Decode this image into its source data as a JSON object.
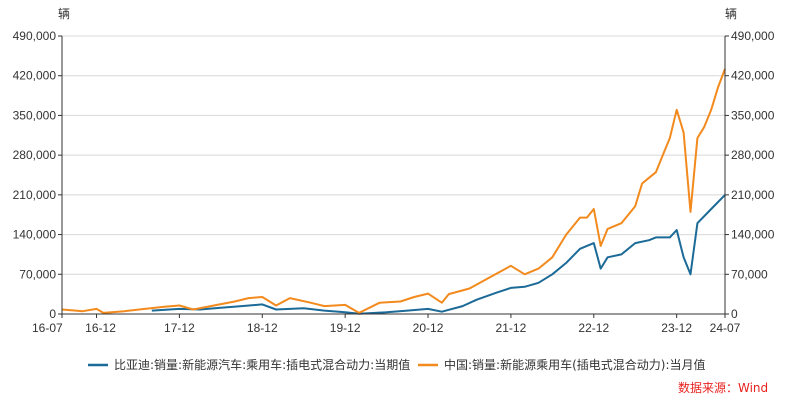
{
  "chart_data": {
    "type": "line",
    "y_unit_left": "辆",
    "y_unit_right": "辆",
    "ylim": [
      0,
      490000
    ],
    "y_ticks": [
      0,
      70000,
      140000,
      210000,
      280000,
      350000,
      420000,
      490000
    ],
    "y_tick_labels": [
      "0",
      "70,000",
      "140,000",
      "210,000",
      "280,000",
      "350,000",
      "420,000",
      "490,000"
    ],
    "x_range": [
      "2016-07",
      "2024-07"
    ],
    "x_ticks": [
      {
        "date": "2016-07",
        "label": "16-07"
      },
      {
        "date": "2016-12",
        "label": "16-12"
      },
      {
        "date": "2017-12",
        "label": "17-12"
      },
      {
        "date": "2018-12",
        "label": "18-12"
      },
      {
        "date": "2019-12",
        "label": "19-12"
      },
      {
        "date": "2020-12",
        "label": "20-12"
      },
      {
        "date": "2021-12",
        "label": "21-12"
      },
      {
        "date": "2022-12",
        "label": "22-12"
      },
      {
        "date": "2023-12",
        "label": "23-12"
      },
      {
        "date": "2024-07",
        "label": "24-07"
      }
    ],
    "grid": "horizontal",
    "legend_position": "bottom",
    "series": [
      {
        "name": "比亚迪:销量:新能源汽车:乘用车:插电式混合动力:当期值",
        "color": "#1b6a97",
        "points": [
          [
            "2017-08",
            6000
          ],
          [
            "2017-12",
            9000
          ],
          [
            "2018-03",
            8000
          ],
          [
            "2018-06",
            11000
          ],
          [
            "2018-09",
            14000
          ],
          [
            "2018-12",
            17000
          ],
          [
            "2019-02",
            8000
          ],
          [
            "2019-06",
            10000
          ],
          [
            "2019-09",
            6000
          ],
          [
            "2019-12",
            3000
          ],
          [
            "2020-02",
            500
          ],
          [
            "2020-06",
            3000
          ],
          [
            "2020-09",
            6000
          ],
          [
            "2020-12",
            9000
          ],
          [
            "2021-02",
            4000
          ],
          [
            "2021-05",
            14000
          ],
          [
            "2021-07",
            25000
          ],
          [
            "2021-10",
            38000
          ],
          [
            "2021-12",
            46000
          ],
          [
            "2022-02",
            48000
          ],
          [
            "2022-04",
            55000
          ],
          [
            "2022-06",
            70000
          ],
          [
            "2022-08",
            90000
          ],
          [
            "2022-10",
            115000
          ],
          [
            "2022-12",
            125000
          ],
          [
            "2023-01",
            80000
          ],
          [
            "2023-02",
            100000
          ],
          [
            "2023-04",
            105000
          ],
          [
            "2023-06",
            125000
          ],
          [
            "2023-08",
            130000
          ],
          [
            "2023-09",
            135000
          ],
          [
            "2023-11",
            135000
          ],
          [
            "2023-12",
            148000
          ],
          [
            "2024-01",
            100000
          ],
          [
            "2024-02",
            70000
          ],
          [
            "2024-03",
            160000
          ],
          [
            "2024-05",
            185000
          ],
          [
            "2024-07",
            210000
          ]
        ]
      },
      {
        "name": "中国:销量:新能源乘用车(插电式混合动力):当月值",
        "color": "#f28a1d",
        "points": [
          [
            "2016-07",
            8000
          ],
          [
            "2016-09",
            6000
          ],
          [
            "2016-10",
            5000
          ],
          [
            "2016-12",
            9000
          ],
          [
            "2017-01",
            2000
          ],
          [
            "2017-04",
            5000
          ],
          [
            "2017-07",
            9000
          ],
          [
            "2017-10",
            13000
          ],
          [
            "2017-12",
            15000
          ],
          [
            "2018-02",
            8000
          ],
          [
            "2018-05",
            15000
          ],
          [
            "2018-08",
            22000
          ],
          [
            "2018-10",
            28000
          ],
          [
            "2018-12",
            30000
          ],
          [
            "2019-02",
            15000
          ],
          [
            "2019-04",
            28000
          ],
          [
            "2019-07",
            20000
          ],
          [
            "2019-09",
            14000
          ],
          [
            "2019-12",
            16000
          ],
          [
            "2020-02",
            2000
          ],
          [
            "2020-05",
            20000
          ],
          [
            "2020-08",
            22000
          ],
          [
            "2020-10",
            30000
          ],
          [
            "2020-12",
            36000
          ],
          [
            "2021-02",
            20000
          ],
          [
            "2021-03",
            35000
          ],
          [
            "2021-06",
            45000
          ],
          [
            "2021-09",
            65000
          ],
          [
            "2021-12",
            85000
          ],
          [
            "2022-02",
            70000
          ],
          [
            "2022-04",
            80000
          ],
          [
            "2022-06",
            100000
          ],
          [
            "2022-08",
            140000
          ],
          [
            "2022-10",
            170000
          ],
          [
            "2022-11",
            170000
          ],
          [
            "2022-12",
            185000
          ],
          [
            "2023-01",
            120000
          ],
          [
            "2023-02",
            150000
          ],
          [
            "2023-04",
            160000
          ],
          [
            "2023-06",
            190000
          ],
          [
            "2023-07",
            230000
          ],
          [
            "2023-08",
            240000
          ],
          [
            "2023-09",
            250000
          ],
          [
            "2023-10",
            280000
          ],
          [
            "2023-11",
            310000
          ],
          [
            "2023-12",
            360000
          ],
          [
            "2024-01",
            320000
          ],
          [
            "2024-02",
            180000
          ],
          [
            "2024-03",
            310000
          ],
          [
            "2024-04",
            330000
          ],
          [
            "2024-05",
            360000
          ],
          [
            "2024-06",
            400000
          ],
          [
            "2024-07",
            432000
          ]
        ]
      }
    ],
    "source": "数据来源：Wind"
  }
}
